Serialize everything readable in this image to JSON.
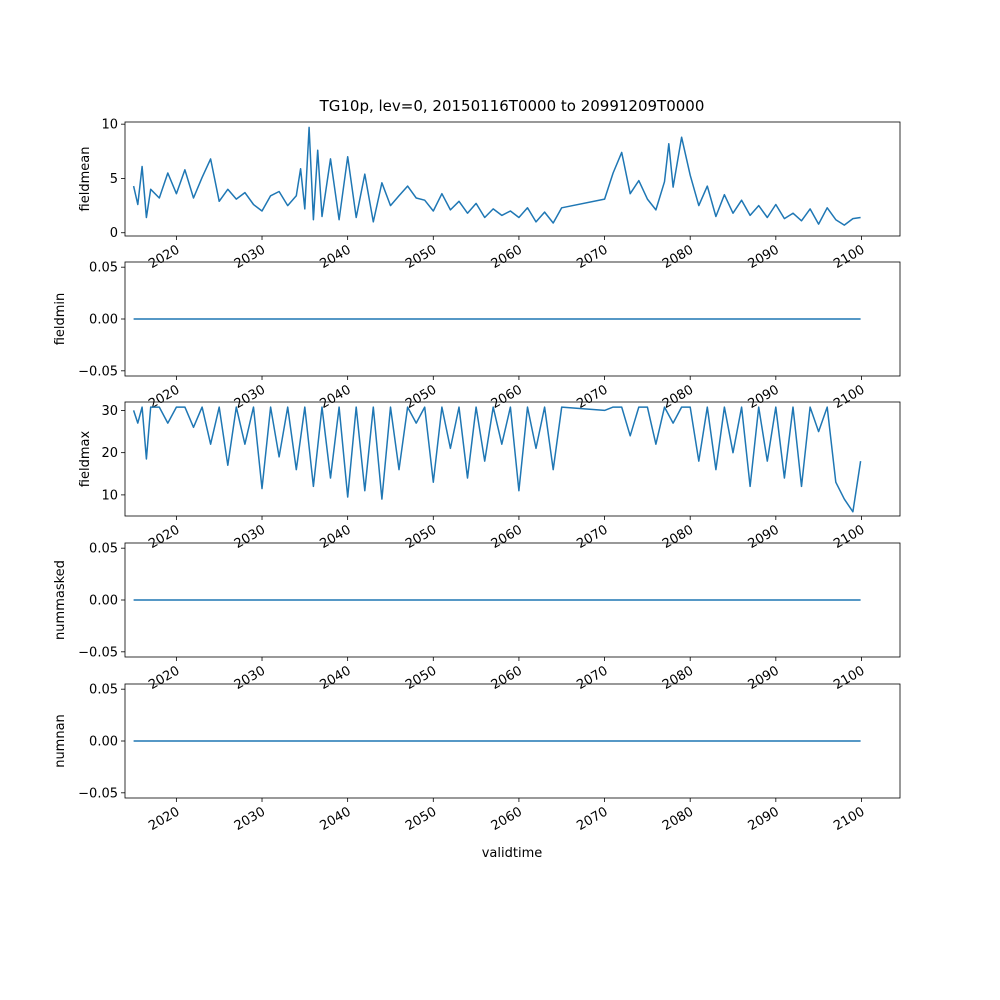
{
  "chart_data": {
    "type": "line",
    "title": "TG10p, lev=0, 20150116T0000 to 20991209T0000",
    "xlabel": "validtime",
    "xlim": [
      2014.0,
      2104.5
    ],
    "x_ticks": [
      2020,
      2030,
      2040,
      2050,
      2060,
      2070,
      2080,
      2090,
      2100
    ],
    "x_tick_labels": [
      "2020",
      "2030",
      "2040",
      "2050",
      "2060",
      "2070",
      "2080",
      "2090",
      "2100"
    ],
    "line_color": "#1f77b4",
    "panels": [
      {
        "ylabel": "fieldmean",
        "ylim": [
          -0.3,
          10.2
        ],
        "y_ticks": [
          0,
          5,
          10
        ],
        "y_tick_labels": [
          "0",
          "5",
          "10"
        ],
        "x": [
          2015.0,
          2015.5,
          2016.0,
          2016.5,
          2017.0,
          2018.0,
          2019.0,
          2020.0,
          2021.0,
          2022.0,
          2023.0,
          2024.0,
          2025.0,
          2026.0,
          2027.0,
          2028.0,
          2029.0,
          2030.0,
          2031.0,
          2032.0,
          2033.0,
          2034.0,
          2034.5,
          2035.0,
          2035.5,
          2036.0,
          2036.5,
          2037.0,
          2038.0,
          2039.0,
          2040.0,
          2041.0,
          2042.0,
          2043.0,
          2044.0,
          2045.0,
          2046.0,
          2047.0,
          2048.0,
          2049.0,
          2050.0,
          2051.0,
          2052.0,
          2053.0,
          2054.0,
          2055.0,
          2056.0,
          2057.0,
          2058.0,
          2059.0,
          2060.0,
          2061.0,
          2062.0,
          2063.0,
          2064.0,
          2065.0,
          2070.0,
          2071.0,
          2072.0,
          2073.0,
          2074.0,
          2075.0,
          2076.0,
          2077.0,
          2077.5,
          2078.0,
          2079.0,
          2080.0,
          2081.0,
          2082.0,
          2083.0,
          2084.0,
          2085.0,
          2086.0,
          2087.0,
          2088.0,
          2089.0,
          2090.0,
          2091.0,
          2092.0,
          2093.0,
          2094.0,
          2095.0,
          2096.0,
          2097.0,
          2098.0,
          2099.0,
          2099.9
        ],
        "y": [
          4.3,
          2.6,
          6.1,
          1.4,
          4.0,
          3.2,
          5.5,
          3.6,
          5.8,
          3.2,
          5.1,
          6.8,
          2.9,
          4.0,
          3.1,
          3.7,
          2.6,
          2.0,
          3.4,
          3.8,
          2.5,
          3.4,
          5.9,
          2.2,
          9.7,
          1.2,
          7.6,
          1.5,
          6.8,
          1.2,
          7.0,
          1.4,
          5.4,
          1.0,
          4.6,
          2.5,
          3.4,
          4.3,
          3.2,
          3.0,
          2.0,
          3.6,
          2.1,
          2.9,
          1.8,
          2.7,
          1.4,
          2.2,
          1.6,
          2.0,
          1.4,
          2.3,
          1.0,
          1.9,
          0.9,
          2.3,
          3.1,
          5.5,
          7.4,
          3.6,
          4.8,
          3.1,
          2.1,
          4.7,
          8.2,
          4.2,
          8.8,
          5.3,
          2.5,
          4.3,
          1.5,
          3.5,
          1.8,
          3.0,
          1.6,
          2.5,
          1.4,
          2.6,
          1.3,
          1.8,
          1.1,
          2.2,
          0.8,
          2.3,
          1.2,
          0.7,
          1.3,
          1.4
        ]
      },
      {
        "ylabel": "fieldmin",
        "ylim": [
          -0.055,
          0.055
        ],
        "y_ticks": [
          -0.05,
          0.0,
          0.05
        ],
        "y_tick_labels": [
          "−0.05",
          "0.00",
          "0.05"
        ],
        "x": [
          2015.0,
          2099.9
        ],
        "y": [
          0.0,
          0.0
        ]
      },
      {
        "ylabel": "fieldmax",
        "ylim": [
          5.0,
          32.0
        ],
        "y_ticks": [
          10,
          20,
          30
        ],
        "y_tick_labels": [
          "10",
          "20",
          "30"
        ],
        "x": [
          2015.0,
          2015.5,
          2016.0,
          2016.5,
          2017.0,
          2018.0,
          2019.0,
          2020.0,
          2021.0,
          2022.0,
          2023.0,
          2024.0,
          2025.0,
          2026.0,
          2027.0,
          2028.0,
          2029.0,
          2030.0,
          2031.0,
          2032.0,
          2033.0,
          2034.0,
          2035.0,
          2036.0,
          2037.0,
          2038.0,
          2039.0,
          2040.0,
          2041.0,
          2042.0,
          2043.0,
          2044.0,
          2045.0,
          2046.0,
          2047.0,
          2048.0,
          2049.0,
          2050.0,
          2051.0,
          2052.0,
          2053.0,
          2054.0,
          2055.0,
          2056.0,
          2057.0,
          2058.0,
          2059.0,
          2060.0,
          2061.0,
          2062.0,
          2063.0,
          2064.0,
          2065.0,
          2070.0,
          2071.0,
          2072.0,
          2073.0,
          2074.0,
          2075.0,
          2076.0,
          2077.0,
          2078.0,
          2079.0,
          2080.0,
          2081.0,
          2082.0,
          2083.0,
          2084.0,
          2085.0,
          2086.0,
          2087.0,
          2088.0,
          2089.0,
          2090.0,
          2091.0,
          2092.0,
          2093.0,
          2094.0,
          2095.0,
          2096.0,
          2097.0,
          2098.0,
          2099.0,
          2099.9
        ],
        "y": [
          30.0,
          27.0,
          30.8,
          18.5,
          30.8,
          30.8,
          27.0,
          30.8,
          30.8,
          26.0,
          30.8,
          22.0,
          30.8,
          17.0,
          30.8,
          22.0,
          30.8,
          11.5,
          30.8,
          19.0,
          30.8,
          16.0,
          30.8,
          12.0,
          30.8,
          14.0,
          30.8,
          9.5,
          30.8,
          11.0,
          30.8,
          9.0,
          30.8,
          16.0,
          30.8,
          27.0,
          30.8,
          13.0,
          30.8,
          21.0,
          30.8,
          14.0,
          30.8,
          18.0,
          30.8,
          22.0,
          30.8,
          11.0,
          30.8,
          21.0,
          30.8,
          16.0,
          30.8,
          30.0,
          30.8,
          30.8,
          24.0,
          30.8,
          30.8,
          22.0,
          30.8,
          27.0,
          30.8,
          30.8,
          18.0,
          30.8,
          16.0,
          30.8,
          20.0,
          30.8,
          12.0,
          30.8,
          18.0,
          30.8,
          14.0,
          30.8,
          12.0,
          30.8,
          25.0,
          30.8,
          13.0,
          9.0,
          6.0,
          18.0
        ]
      },
      {
        "ylabel": "nummasked",
        "ylim": [
          -0.055,
          0.055
        ],
        "y_ticks": [
          -0.05,
          0.0,
          0.05
        ],
        "y_tick_labels": [
          "−0.05",
          "0.00",
          "0.05"
        ],
        "x": [
          2015.0,
          2099.9
        ],
        "y": [
          0.0,
          0.0
        ]
      },
      {
        "ylabel": "numnan",
        "ylim": [
          -0.055,
          0.055
        ],
        "y_ticks": [
          -0.05,
          0.0,
          0.05
        ],
        "y_tick_labels": [
          "−0.05",
          "0.00",
          "0.05"
        ],
        "x": [
          2015.0,
          2099.9
        ],
        "y": [
          0.0,
          0.0
        ]
      }
    ]
  }
}
